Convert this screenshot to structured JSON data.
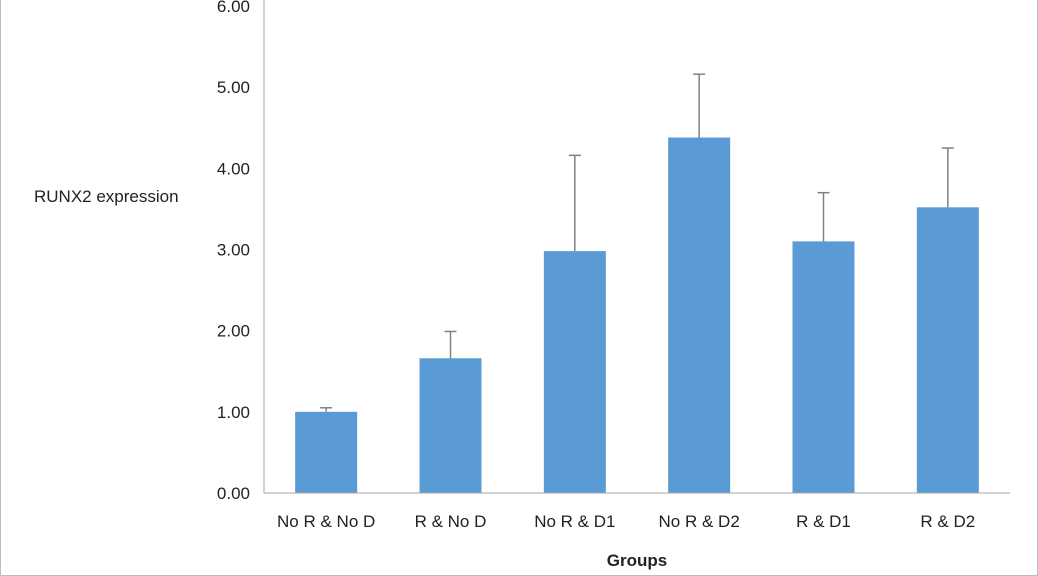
{
  "chart_data": {
    "type": "bar",
    "categories": [
      "No R & No D",
      "R & No D",
      "No R & D1",
      "No R & D2",
      "R & D1",
      "R & D2"
    ],
    "values": [
      1.0,
      1.66,
      2.98,
      4.38,
      3.1,
      3.52
    ],
    "error_plus": [
      0.05,
      0.33,
      1.18,
      0.78,
      0.6,
      0.73
    ],
    "ylabel": "RUNX2 expression",
    "xlabel": "Groups",
    "ylim": [
      0,
      6
    ],
    "yticks": [
      "0.00",
      "1.00",
      "2.00",
      "3.00",
      "4.00",
      "5.00",
      "6.00"
    ],
    "grid": false,
    "legend": "none",
    "bar_color": "#5b9bd5",
    "error_color": "#808080",
    "axis_color": "#a6a6a6"
  }
}
